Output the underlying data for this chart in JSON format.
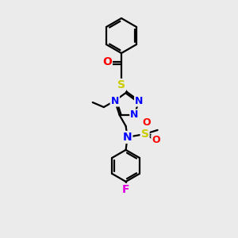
{
  "bg_color": "#ebebeb",
  "atom_colors": {
    "C": "#000000",
    "N": "#0000ff",
    "O": "#ff0000",
    "S": "#cccc00",
    "F": "#e000e0",
    "H": "#000000"
  },
  "bond_color": "#000000",
  "bond_lw": 1.6,
  "font_size_atom": 9,
  "fig_size": [
    3.0,
    3.0
  ],
  "dpi": 100
}
